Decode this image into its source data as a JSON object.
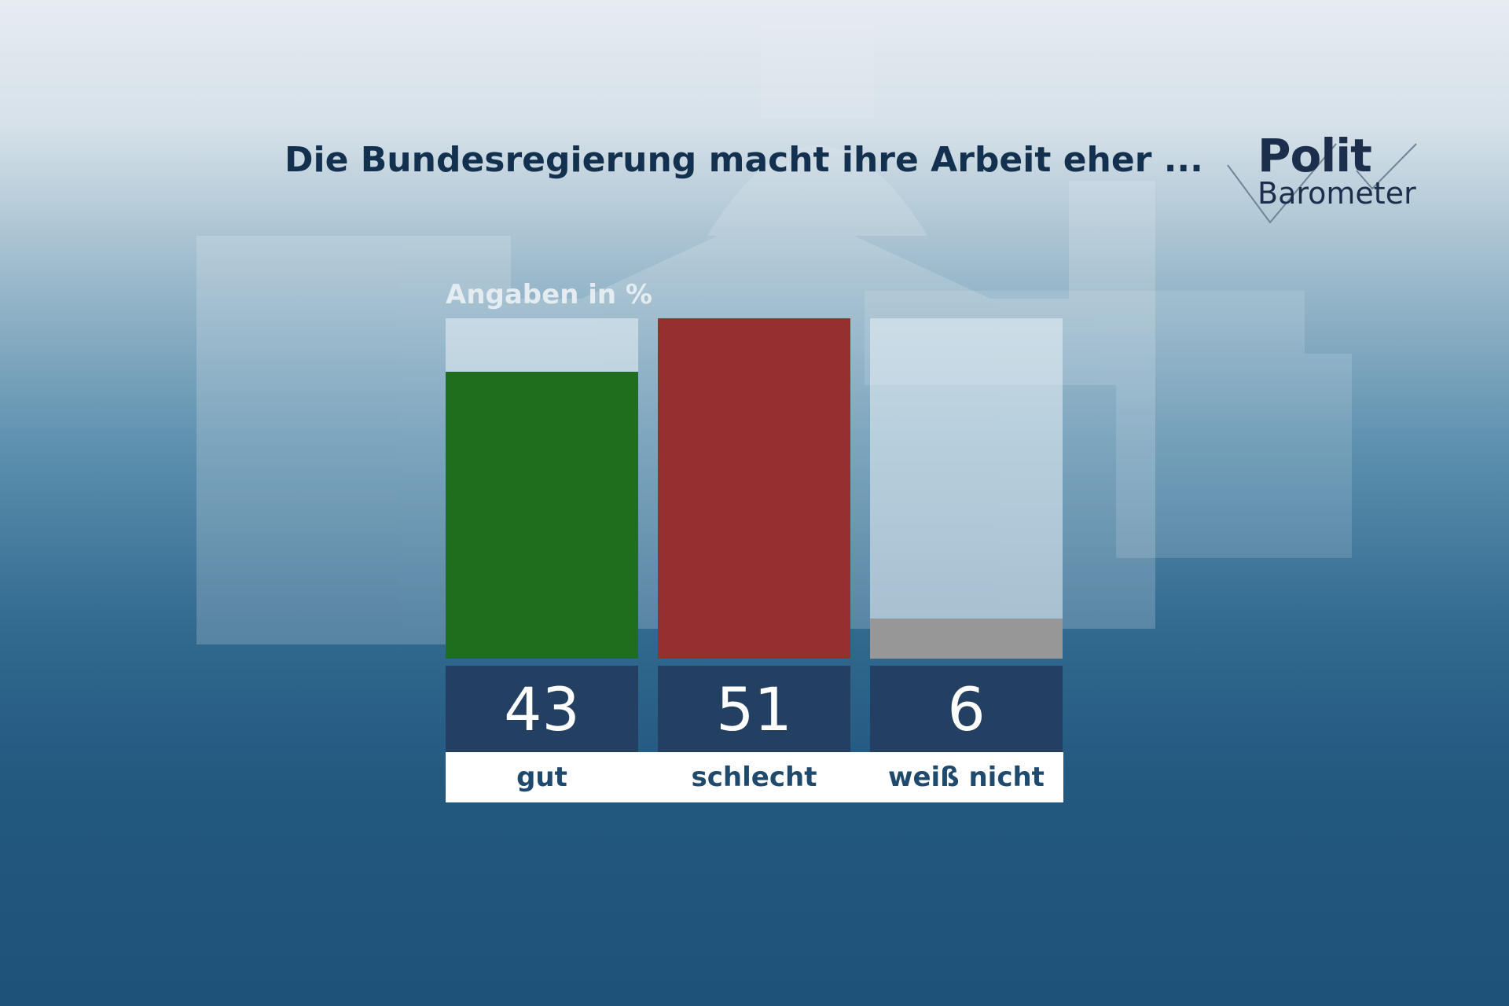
{
  "header": {
    "title": "Die Bundesregierung macht ihre Arbeit eher ..."
  },
  "logo": {
    "line1": "Polit",
    "line2": "Barometer"
  },
  "chart_data": {
    "type": "bar",
    "subtitle": "Angaben in %",
    "categories": [
      "gut",
      "schlecht",
      "weiß nicht"
    ],
    "values": [
      43,
      51,
      6
    ],
    "colors": [
      "#1e6e1e",
      "#963030",
      "#979797"
    ],
    "ylim": [
      0,
      51
    ],
    "grid": false,
    "legend": "none"
  },
  "colors": {
    "value_box": "#233f61",
    "title_text": "#14304f",
    "category_text": "#1f4a6e"
  }
}
